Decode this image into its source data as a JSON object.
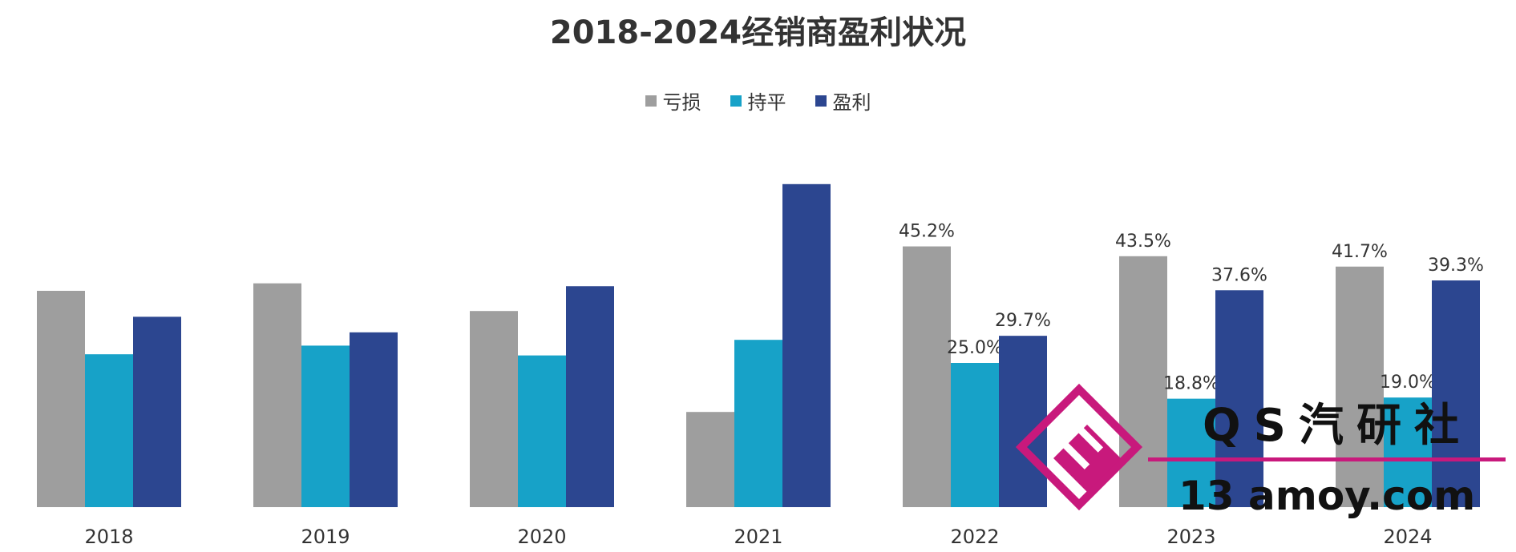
{
  "chart_data": {
    "type": "bar",
    "title": "2018-2024经销商盈利状况",
    "categories": [
      "2018",
      "2019",
      "2020",
      "2021",
      "2022",
      "2023",
      "2024"
    ],
    "series": [
      {
        "name": "亏损",
        "color": "#9e9e9e",
        "values": [
          37.5,
          38.8,
          34.0,
          16.5,
          45.2,
          43.5,
          41.7
        ],
        "labels": [
          "",
          "",
          "",
          "",
          "45.2%",
          "43.5%",
          "41.7%"
        ]
      },
      {
        "name": "持平",
        "color": "#17a2c8",
        "values": [
          26.5,
          28.0,
          26.3,
          29.0,
          25.0,
          18.8,
          19.0
        ],
        "labels": [
          "",
          "",
          "",
          "",
          "25.0%",
          "18.8%",
          "19.0%"
        ]
      },
      {
        "name": "盈利",
        "color": "#2c4690",
        "values": [
          33.0,
          30.3,
          38.3,
          56.0,
          29.7,
          37.6,
          39.3
        ],
        "labels": [
          "",
          "",
          "",
          "",
          "29.7%",
          "37.6%",
          "39.3%"
        ]
      }
    ],
    "ylim": [
      0,
      60
    ],
    "grid": false,
    "legend_position": "top-center",
    "xlabel": "",
    "ylabel": ""
  },
  "watermark": {
    "brand": "QS汽研社",
    "url": "13 amoy.com",
    "colors": {
      "magenta": "#c8197c",
      "dark": "#111111"
    }
  }
}
